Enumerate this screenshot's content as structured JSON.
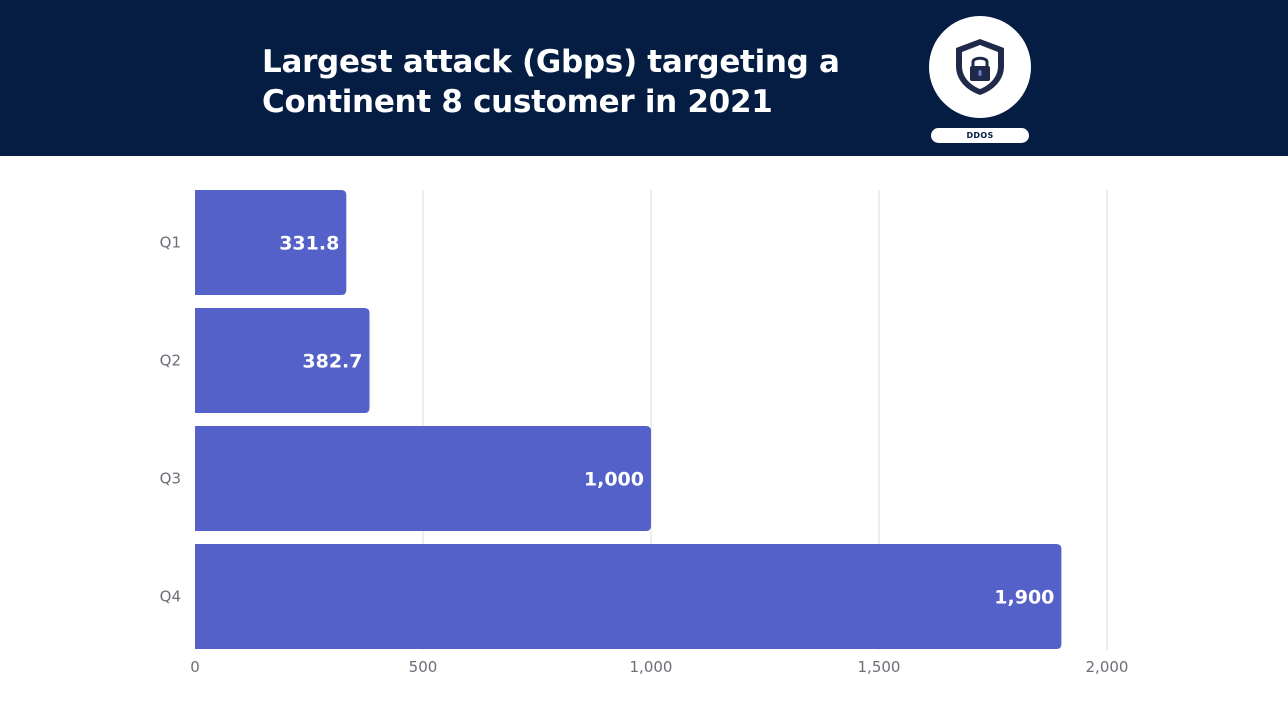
{
  "header": {
    "title_line1": "Largest attack (Gbps) targeting a",
    "title_line2": "Continent 8 customer in 2021",
    "badge_icon": "shield-lock-icon",
    "badge_label": "DDOS",
    "background_color": "#051d42"
  },
  "chart_data": {
    "type": "bar",
    "orientation": "horizontal",
    "title": "Largest attack (Gbps) targeting a Continent 8 customer in 2021",
    "categories": [
      "Q1",
      "Q2",
      "Q3",
      "Q4"
    ],
    "values": [
      331.8,
      382.7,
      1000,
      1900
    ],
    "value_labels": [
      "331.8",
      "382.7",
      "1,000",
      "1,900"
    ],
    "xlim": [
      0,
      2000
    ],
    "xticks": [
      0,
      500,
      1000,
      1500,
      2000
    ],
    "xtick_labels": [
      "0",
      "500",
      "1,000",
      "1,500",
      "2,000"
    ],
    "grid": true,
    "legend": "none",
    "bar_color": "#5461c8"
  }
}
